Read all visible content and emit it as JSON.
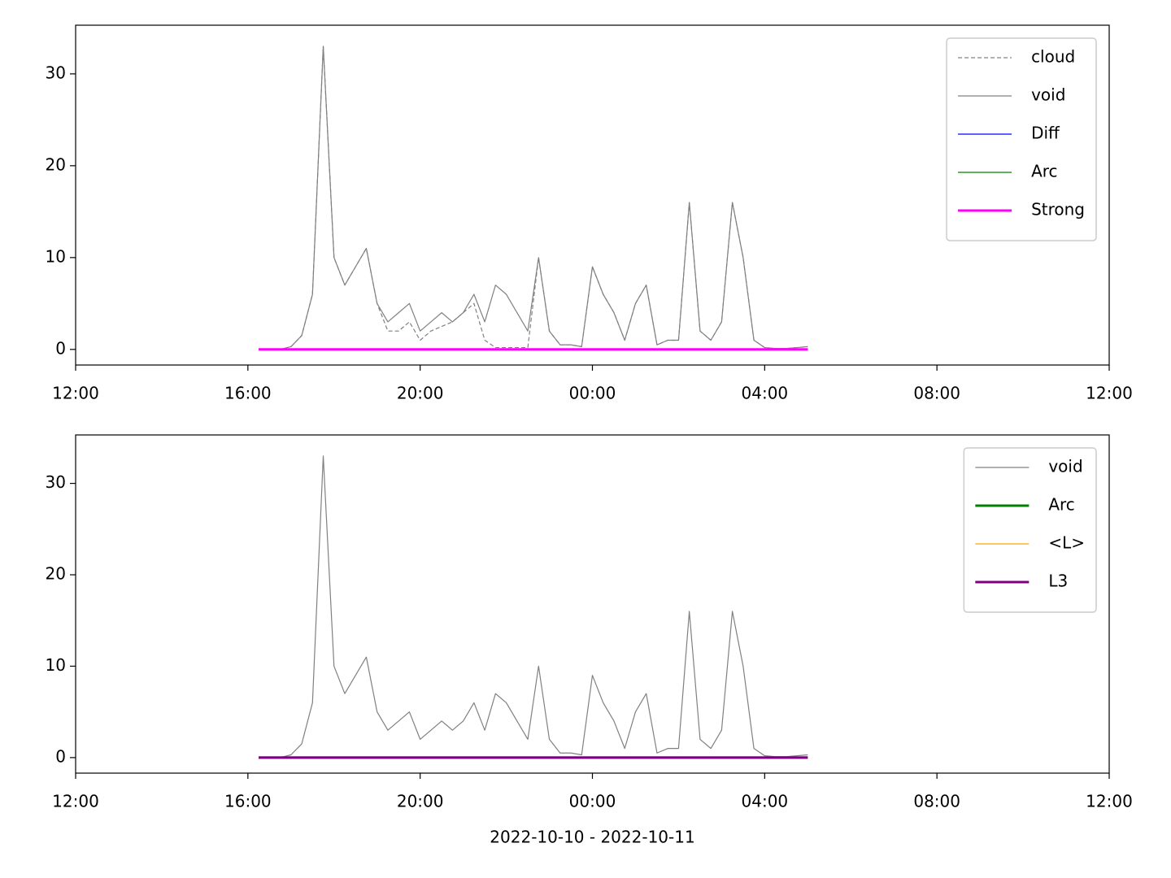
{
  "chart_data": [
    {
      "type": "line",
      "legend": "upper right",
      "x": [
        "2022-10-10T16:15",
        "2022-10-10T16:30",
        "2022-10-10T16:45",
        "2022-10-10T17:00",
        "2022-10-10T17:15",
        "2022-10-10T17:30",
        "2022-10-10T17:45",
        "2022-10-10T18:00",
        "2022-10-10T18:15",
        "2022-10-10T18:30",
        "2022-10-10T18:45",
        "2022-10-10T19:00",
        "2022-10-10T19:15",
        "2022-10-10T19:30",
        "2022-10-10T19:45",
        "2022-10-10T20:00",
        "2022-10-10T20:15",
        "2022-10-10T20:30",
        "2022-10-10T20:45",
        "2022-10-10T21:00",
        "2022-10-10T21:15",
        "2022-10-10T21:30",
        "2022-10-10T21:45",
        "2022-10-10T22:00",
        "2022-10-10T22:15",
        "2022-10-10T22:30",
        "2022-10-10T22:45",
        "2022-10-10T23:00",
        "2022-10-10T23:15",
        "2022-10-10T23:30",
        "2022-10-10T23:45",
        "2022-10-11T00:00",
        "2022-10-11T00:15",
        "2022-10-11T00:30",
        "2022-10-11T00:45",
        "2022-10-11T01:00",
        "2022-10-11T01:15",
        "2022-10-11T01:30",
        "2022-10-11T01:45",
        "2022-10-11T02:00",
        "2022-10-11T02:15",
        "2022-10-11T02:30",
        "2022-10-11T02:45",
        "2022-10-11T03:00",
        "2022-10-11T03:15",
        "2022-10-11T03:30",
        "2022-10-11T03:45",
        "2022-10-11T04:00",
        "2022-10-11T04:15",
        "2022-10-11T04:30",
        "2022-10-11T04:45",
        "2022-10-11T05:00"
      ],
      "xlim": [
        "2022-10-10T12:00",
        "2022-10-11T12:00"
      ],
      "xticks": [
        {
          "value": "2022-10-10T12:00",
          "label": "12:00"
        },
        {
          "value": "2022-10-10T16:00",
          "label": "16:00"
        },
        {
          "value": "2022-10-10T20:00",
          "label": "20:00"
        },
        {
          "value": "2022-10-11T00:00",
          "label": "00:00"
        },
        {
          "value": "2022-10-11T04:00",
          "label": "04:00"
        },
        {
          "value": "2022-10-11T08:00",
          "label": "08:00"
        },
        {
          "value": "2022-10-11T12:00",
          "label": "12:00"
        }
      ],
      "ylim": [
        -1.7,
        35.3
      ],
      "yticks": [
        0,
        10,
        20,
        30
      ],
      "series": [
        {
          "name": "cloud",
          "color": "#808080",
          "linestyle": "dashed",
          "linewidth": 1.2,
          "values": [
            0,
            0,
            0,
            0.3,
            1.5,
            6,
            33,
            10,
            7,
            9,
            11,
            5,
            2,
            2,
            3,
            1,
            2,
            2.5,
            3,
            4,
            5,
            1,
            0.2,
            0.2,
            0.2,
            0.2,
            10,
            2,
            0.5,
            0.5,
            0.3,
            9,
            6,
            4,
            1,
            5,
            7,
            0.5,
            1,
            1,
            16,
            2,
            1,
            3,
            16,
            10,
            1,
            0.2,
            0.1,
            0.1,
            0.2,
            0.3
          ]
        },
        {
          "name": "void",
          "color": "#808080",
          "linewidth": 1.2,
          "values": [
            0,
            0,
            0,
            0.3,
            1.5,
            6,
            33,
            10,
            7,
            9,
            11,
            5,
            3,
            4,
            5,
            2,
            3,
            4,
            3,
            4,
            6,
            3,
            7,
            6,
            4,
            2,
            10,
            2,
            0.5,
            0.5,
            0.3,
            9,
            6,
            4,
            1,
            5,
            7,
            0.5,
            1,
            1,
            16,
            2,
            1,
            3,
            16,
            10,
            1,
            0.2,
            0.1,
            0.1,
            0.2,
            0.3
          ]
        },
        {
          "name": "Diff",
          "color": "#0000ff",
          "linewidth": 1.2,
          "values": [
            0,
            0,
            0,
            0,
            0,
            0,
            0,
            0,
            0,
            0,
            0,
            0,
            0,
            0,
            0,
            0,
            0,
            0,
            0,
            0,
            0,
            0,
            0,
            0,
            0,
            0,
            0,
            0,
            0,
            0,
            0,
            0,
            0,
            0,
            0,
            0,
            0,
            0,
            0,
            0,
            0,
            0,
            0,
            0,
            0,
            0,
            0,
            0,
            0,
            0,
            0,
            0
          ]
        },
        {
          "name": "Arc",
          "color": "#008000",
          "linewidth": 1.2,
          "values": [
            0,
            0,
            0,
            0,
            0,
            0,
            0,
            0,
            0,
            0,
            0,
            0,
            0,
            0,
            0,
            0,
            0,
            0,
            0,
            0,
            0,
            0,
            0,
            0,
            0,
            0,
            0,
            0,
            0,
            0,
            0,
            0,
            0,
            0,
            0,
            0,
            0,
            0,
            0,
            0,
            0,
            0,
            0,
            0,
            0,
            0,
            0,
            0,
            0,
            0,
            0,
            0
          ]
        },
        {
          "name": "Strong",
          "color": "#ff00ff",
          "linewidth": 3,
          "values": [
            0,
            0,
            0,
            0,
            0,
            0,
            0,
            0,
            0,
            0,
            0,
            0,
            0,
            0,
            0,
            0,
            0,
            0,
            0,
            0,
            0,
            0,
            0,
            0,
            0,
            0,
            0,
            0,
            0,
            0,
            0,
            0,
            0,
            0,
            0,
            0,
            0,
            0,
            0,
            0,
            0,
            0,
            0,
            0,
            0,
            0,
            0,
            0,
            0,
            0,
            0,
            0
          ]
        }
      ]
    },
    {
      "type": "line",
      "legend": "upper right",
      "xlabel": "2022-10-10 - 2022-10-11",
      "x": [
        "2022-10-10T16:15",
        "2022-10-10T16:30",
        "2022-10-10T16:45",
        "2022-10-10T17:00",
        "2022-10-10T17:15",
        "2022-10-10T17:30",
        "2022-10-10T17:45",
        "2022-10-10T18:00",
        "2022-10-10T18:15",
        "2022-10-10T18:30",
        "2022-10-10T18:45",
        "2022-10-10T19:00",
        "2022-10-10T19:15",
        "2022-10-10T19:30",
        "2022-10-10T19:45",
        "2022-10-10T20:00",
        "2022-10-10T20:15",
        "2022-10-10T20:30",
        "2022-10-10T20:45",
        "2022-10-10T21:00",
        "2022-10-10T21:15",
        "2022-10-10T21:30",
        "2022-10-10T21:45",
        "2022-10-10T22:00",
        "2022-10-10T22:15",
        "2022-10-10T22:30",
        "2022-10-10T22:45",
        "2022-10-10T23:00",
        "2022-10-10T23:15",
        "2022-10-10T23:30",
        "2022-10-10T23:45",
        "2022-10-11T00:00",
        "2022-10-11T00:15",
        "2022-10-11T00:30",
        "2022-10-11T00:45",
        "2022-10-11T01:00",
        "2022-10-11T01:15",
        "2022-10-11T01:30",
        "2022-10-11T01:45",
        "2022-10-11T02:00",
        "2022-10-11T02:15",
        "2022-10-11T02:30",
        "2022-10-11T02:45",
        "2022-10-11T03:00",
        "2022-10-11T03:15",
        "2022-10-11T03:30",
        "2022-10-11T03:45",
        "2022-10-11T04:00",
        "2022-10-11T04:15",
        "2022-10-11T04:30",
        "2022-10-11T04:45",
        "2022-10-11T05:00"
      ],
      "xlim": [
        "2022-10-10T12:00",
        "2022-10-11T12:00"
      ],
      "xticks": [
        {
          "value": "2022-10-10T12:00",
          "label": "12:00"
        },
        {
          "value": "2022-10-10T16:00",
          "label": "16:00"
        },
        {
          "value": "2022-10-10T20:00",
          "label": "20:00"
        },
        {
          "value": "2022-10-11T00:00",
          "label": "00:00"
        },
        {
          "value": "2022-10-11T04:00",
          "label": "04:00"
        },
        {
          "value": "2022-10-11T08:00",
          "label": "08:00"
        },
        {
          "value": "2022-10-11T12:00",
          "label": "12:00"
        }
      ],
      "ylim": [
        -1.7,
        35.3
      ],
      "yticks": [
        0,
        10,
        20,
        30
      ],
      "series": [
        {
          "name": "void",
          "color": "#808080",
          "linewidth": 1.2,
          "values": [
            0,
            0,
            0,
            0.3,
            1.5,
            6,
            33,
            10,
            7,
            9,
            11,
            5,
            3,
            4,
            5,
            2,
            3,
            4,
            3,
            4,
            6,
            3,
            7,
            6,
            4,
            2,
            10,
            2,
            0.5,
            0.5,
            0.3,
            9,
            6,
            4,
            1,
            5,
            7,
            0.5,
            1,
            1,
            16,
            2,
            1,
            3,
            16,
            10,
            1,
            0.2,
            0.1,
            0.1,
            0.2,
            0.3
          ]
        },
        {
          "name": "Arc",
          "color": "#008000",
          "linewidth": 3,
          "values": [
            0,
            0,
            0,
            0,
            0,
            0,
            0,
            0,
            0,
            0,
            0,
            0,
            0,
            0,
            0,
            0,
            0,
            0,
            0,
            0,
            0,
            0,
            0,
            0,
            0,
            0,
            0,
            0,
            0,
            0,
            0,
            0,
            0,
            0,
            0,
            0,
            0,
            0,
            0,
            0,
            0,
            0,
            0,
            0,
            0,
            0,
            0,
            0,
            0,
            0,
            0,
            0
          ]
        },
        {
          "name": "<L>",
          "color": "#ffa500",
          "linewidth": 1.2,
          "values": [
            0,
            0,
            0,
            0,
            0,
            0,
            0,
            0,
            0,
            0,
            0,
            0,
            0,
            0,
            0,
            0,
            0,
            0,
            0,
            0,
            0,
            0,
            0,
            0,
            0,
            0,
            0,
            0,
            0,
            0,
            0,
            0,
            0,
            0,
            0,
            0,
            0,
            0,
            0,
            0,
            0,
            0,
            0,
            0,
            0,
            0,
            0,
            0,
            0,
            0,
            0,
            0
          ]
        },
        {
          "name": "L3",
          "color": "#800080",
          "linewidth": 3,
          "values": [
            0,
            0,
            0,
            0,
            0,
            0,
            0,
            0,
            0,
            0,
            0,
            0,
            0,
            0,
            0,
            0,
            0,
            0,
            0,
            0,
            0,
            0,
            0,
            0,
            0,
            0,
            0,
            0,
            0,
            0,
            0,
            0,
            0,
            0,
            0,
            0,
            0,
            0,
            0,
            0,
            0,
            0,
            0,
            0,
            0,
            0,
            0,
            0,
            0,
            0,
            0,
            0
          ]
        }
      ]
    }
  ]
}
